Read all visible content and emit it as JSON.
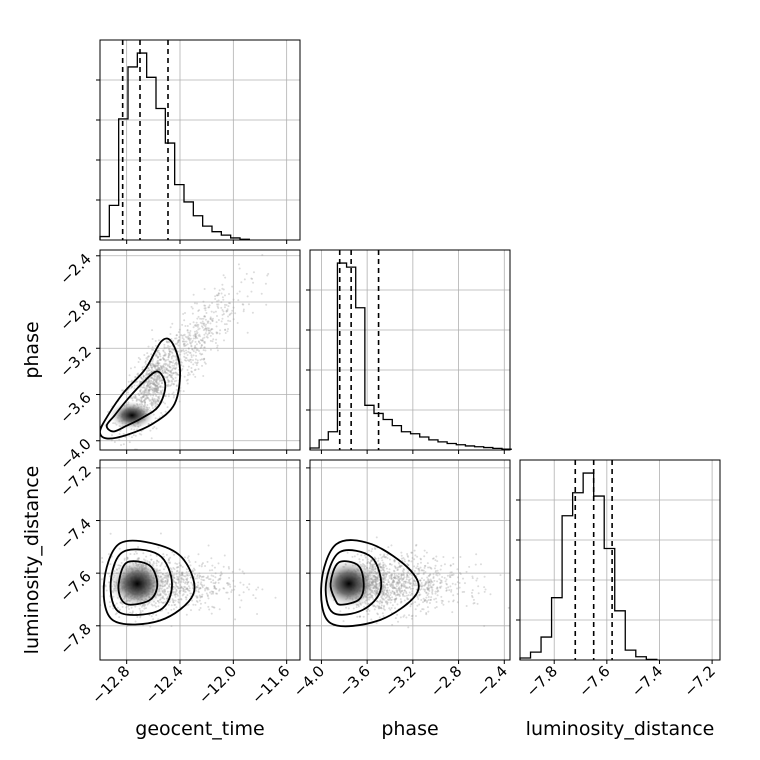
{
  "chart_data": {
    "type": "corner",
    "parameters": [
      "geocent_time",
      "phase",
      "luminosity_distance"
    ],
    "grid": true,
    "marginals": [
      {
        "parameter": "geocent_time",
        "xlim": [
          -13.0,
          -11.5
        ],
        "xticks": [
          -12.8,
          -12.4,
          -12.0,
          -11.6
        ],
        "tick_labels": [
          "−12.8",
          "−12.4",
          "−12.0",
          "−11.6"
        ],
        "bin_edges": [
          -13.0,
          -12.93,
          -12.86,
          -12.79,
          -12.72,
          -12.65,
          -12.58,
          -12.51,
          -12.44,
          -12.37,
          -12.3,
          -12.23,
          -12.16,
          -12.09,
          -12.02,
          -11.95,
          -11.88
        ],
        "counts": [
          0.5,
          5.0,
          17.5,
          25.0,
          27.0,
          23.5,
          19.0,
          14.0,
          8.0,
          5.5,
          3.5,
          2.0,
          1.2,
          0.7,
          0.3,
          0.1
        ],
        "quantiles": [
          -12.83,
          -12.7,
          -12.49
        ]
      },
      {
        "parameter": "phase",
        "xlim": [
          -4.1,
          -2.35
        ],
        "xticks": [
          -4.0,
          -3.6,
          -3.2,
          -2.8,
          -2.4
        ],
        "tick_labels": [
          "−4.0",
          "−3.6",
          "−3.2",
          "−2.8",
          "−2.4"
        ],
        "bin_edges": [
          -4.1,
          -4.02,
          -3.94,
          -3.86,
          -3.78,
          -3.7,
          -3.62,
          -3.54,
          -3.46,
          -3.38,
          -3.3,
          -3.22,
          -3.14,
          -3.06,
          -2.98,
          -2.9,
          -2.82,
          -2.74,
          -2.66,
          -2.58,
          -2.5,
          -2.42,
          -2.34
        ],
        "counts": [
          0.5,
          2.5,
          4.5,
          46.0,
          45.0,
          35.0,
          11.0,
          9.0,
          7.5,
          6.0,
          4.5,
          4.0,
          3.2,
          2.5,
          2.0,
          1.6,
          1.3,
          1.0,
          0.8,
          0.6,
          0.4,
          0.2
        ],
        "quantiles": [
          -3.84,
          -3.74,
          -3.5
        ]
      },
      {
        "parameter": "luminosity_distance",
        "xlim": [
          -7.93,
          -7.17
        ],
        "xticks": [
          -7.8,
          -7.6,
          -7.4,
          -7.2
        ],
        "tick_labels": [
          "−7.8",
          "−7.6",
          "−7.4",
          "−7.2"
        ],
        "bin_edges": [
          -7.93,
          -7.89,
          -7.85,
          -7.81,
          -7.77,
          -7.73,
          -7.69,
          -7.65,
          -7.61,
          -7.57,
          -7.53,
          -7.49,
          -7.45,
          -7.41
        ],
        "counts": [
          0.3,
          1.2,
          3.5,
          9.5,
          22.0,
          25.5,
          28.5,
          25.0,
          17.0,
          7.5,
          1.5,
          0.5,
          0.1
        ],
        "quantiles": [
          -7.72,
          -7.65,
          -7.58
        ]
      }
    ],
    "joints": [
      {
        "x_param": "geocent_time",
        "y_param": "phase",
        "xlim": [
          -13.0,
          -11.5
        ],
        "ylim": [
          -4.08,
          -2.35
        ],
        "yticks": [
          -4.0,
          -3.6,
          -3.2,
          -2.8,
          -2.4
        ],
        "ytick_labels": [
          "−4.0",
          "−3.6",
          "−3.2",
          "−2.8",
          "−2.4"
        ],
        "scatter_center": [
          -12.55,
          -3.45
        ],
        "contours": [
          [
            [
              -12.9,
              -3.92
            ],
            [
              -12.8,
              -3.87
            ],
            [
              -12.68,
              -3.8
            ],
            [
              -12.56,
              -3.7
            ],
            [
              -12.51,
              -3.52
            ],
            [
              -12.57,
              -3.4
            ],
            [
              -12.68,
              -3.5
            ],
            [
              -12.8,
              -3.65
            ],
            [
              -12.89,
              -3.78
            ],
            [
              -12.95,
              -3.87
            ]
          ],
          [
            [
              -12.95,
              -3.98
            ],
            [
              -12.8,
              -3.95
            ],
            [
              -12.6,
              -3.85
            ],
            [
              -12.44,
              -3.68
            ],
            [
              -12.4,
              -3.38
            ],
            [
              -12.46,
              -3.15
            ],
            [
              -12.54,
              -3.14
            ],
            [
              -12.66,
              -3.38
            ],
            [
              -12.82,
              -3.58
            ],
            [
              -12.94,
              -3.78
            ],
            [
              -13.0,
              -3.92
            ]
          ]
        ],
        "density_center": [
          -12.76,
          -3.78
        ]
      },
      {
        "x_param": "geocent_time",
        "y_param": "luminosity_distance",
        "xlim": [
          -13.0,
          -11.5
        ],
        "ylim": [
          -7.93,
          -7.17
        ],
        "yticks": [
          -7.8,
          -7.6,
          -7.4,
          -7.2
        ],
        "ytick_labels": [
          "−7.8",
          "−7.6",
          "−7.4",
          "−7.2"
        ],
        "scatter_center": [
          -12.65,
          -7.64
        ],
        "contours": [
          [
            [
              -12.77,
              -7.72
            ],
            [
              -12.62,
              -7.7
            ],
            [
              -12.57,
              -7.64
            ],
            [
              -12.63,
              -7.57
            ],
            [
              -12.8,
              -7.56
            ],
            [
              -12.86,
              -7.64
            ],
            [
              -12.84,
              -7.7
            ]
          ],
          [
            [
              -12.85,
              -7.75
            ],
            [
              -12.55,
              -7.74
            ],
            [
              -12.46,
              -7.64
            ],
            [
              -12.56,
              -7.53
            ],
            [
              -12.83,
              -7.52
            ],
            [
              -12.92,
              -7.64
            ]
          ],
          [
            [
              -12.9,
              -7.78
            ],
            [
              -12.55,
              -7.78
            ],
            [
              -12.3,
              -7.68
            ],
            [
              -12.37,
              -7.55
            ],
            [
              -12.58,
              -7.49
            ],
            [
              -12.86,
              -7.49
            ],
            [
              -12.97,
              -7.64
            ]
          ]
        ],
        "density_center": [
          -12.72,
          -7.64
        ]
      },
      {
        "x_param": "phase",
        "y_param": "luminosity_distance",
        "xlim": [
          -4.1,
          -2.35
        ],
        "ylim": [
          -7.93,
          -7.17
        ],
        "yticks": [
          -7.8,
          -7.6,
          -7.4,
          -7.2
        ],
        "ytick_labels": [
          "−7.8",
          "−7.6",
          "−7.4",
          "−7.2"
        ],
        "scatter_center": [
          -3.45,
          -7.64
        ],
        "contours": [
          [
            [
              -3.83,
              -7.72
            ],
            [
              -3.67,
              -7.7
            ],
            [
              -3.63,
              -7.64
            ],
            [
              -3.68,
              -7.57
            ],
            [
              -3.85,
              -7.56
            ],
            [
              -3.92,
              -7.64
            ],
            [
              -3.88,
              -7.7
            ]
          ],
          [
            [
              -3.9,
              -7.75
            ],
            [
              -3.64,
              -7.74
            ],
            [
              -3.48,
              -7.66
            ],
            [
              -3.56,
              -7.54
            ],
            [
              -3.84,
              -7.52
            ],
            [
              -3.96,
              -7.64
            ]
          ],
          [
            [
              -3.92,
              -7.79
            ],
            [
              -3.5,
              -7.78
            ],
            [
              -3.17,
              -7.68
            ],
            [
              -3.22,
              -7.59
            ],
            [
              -3.56,
              -7.49
            ],
            [
              -3.87,
              -7.49
            ],
            [
              -4.0,
              -7.64
            ]
          ]
        ],
        "density_center": [
          -3.76,
          -7.64
        ]
      }
    ]
  }
}
